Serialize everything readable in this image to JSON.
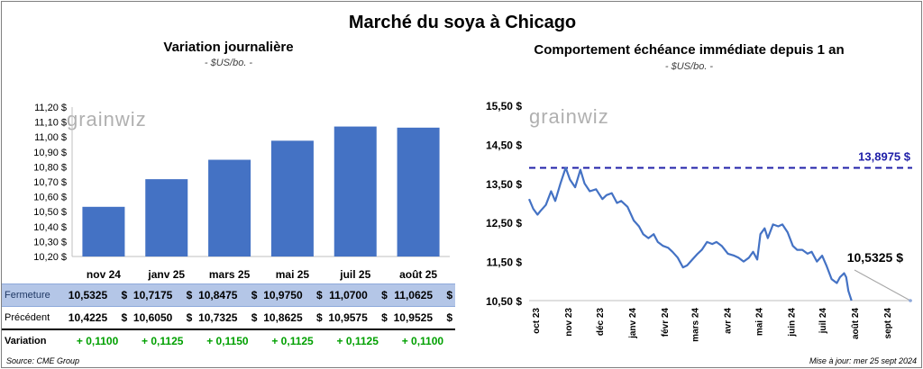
{
  "title": "Marché du soya à Chicago",
  "left": {
    "subtitle": "Variation journalière",
    "unit": "- $US/bo. -"
  },
  "right": {
    "subtitle": "Comportement échéance immédiate depuis 1 an",
    "unit": "- $US/bo. -"
  },
  "logo": "grainwiz",
  "footer": {
    "source": "Source: CME Group",
    "updated": "Mise à jour: mer 25 sept 2024"
  },
  "table": {
    "rows": [
      {
        "label": "Fermeture",
        "values": [
          "10,5325",
          "10,7175",
          "10,8475",
          "10,9750",
          "11,0700",
          "11,0625"
        ],
        "suffix": "$"
      },
      {
        "label": "Précédent",
        "values": [
          "10,4225",
          "10,6050",
          "10,7325",
          "10,8625",
          "10,9575",
          "10,9525"
        ],
        "suffix": "$"
      },
      {
        "label": "Variation",
        "values": [
          "+ 0,1100",
          "+ 0,1125",
          "+ 0,1150",
          "+ 0,1125",
          "+ 0,1125",
          "+ 0,1100"
        ],
        "suffix": ""
      }
    ]
  },
  "colors": {
    "bar": "#4472c4",
    "line": "#4472c4",
    "ref_line": "#1f1fa8",
    "variation_text": "#00a000",
    "table_highlight": "#b4c6e7"
  },
  "chart_data": [
    {
      "type": "bar",
      "categories": [
        "nov 24",
        "janv 25",
        "mars 25",
        "mai 25",
        "juil 25",
        "août 25"
      ],
      "values": [
        10.5325,
        10.7175,
        10.8475,
        10.975,
        11.07,
        11.0625
      ],
      "yticks": [
        "10,20 $",
        "10,30 $",
        "10,40 $",
        "10,50 $",
        "10,60 $",
        "10,70 $",
        "10,80 $",
        "10,90 $",
        "11,00 $",
        "11,10 $",
        "11,20 $"
      ],
      "ylim": [
        10.2,
        11.2
      ],
      "grid": false
    },
    {
      "type": "line",
      "x_start": "2023-09-25",
      "x_end": "2024-09-25",
      "xticks": [
        "oct 23",
        "nov 23",
        "déc 23",
        "janv 24",
        "févr 24",
        "mars 24",
        "avr 24",
        "mai 24",
        "juin 24",
        "juil 24",
        "août 24",
        "sept 24"
      ],
      "yticks": [
        "10,50 $",
        "11,50 $",
        "12,50 $",
        "13,50 $",
        "14,50 $",
        "15,50 $"
      ],
      "ylim": [
        10.5,
        15.5
      ],
      "reference_line": {
        "value": 13.8975,
        "label": "13,8975 $"
      },
      "last_value_label": "10,5325 $",
      "series": [
        {
          "points": [
            [
              "2023-09-25",
              13.1
            ],
            [
              "2023-09-29",
              12.85
            ],
            [
              "2023-10-03",
              12.7
            ],
            [
              "2023-10-06",
              12.8
            ],
            [
              "2023-10-11",
              12.95
            ],
            [
              "2023-10-16",
              13.3
            ],
            [
              "2023-10-20",
              13.05
            ],
            [
              "2023-10-25",
              13.5
            ],
            [
              "2023-10-30",
              13.9
            ],
            [
              "2023-11-03",
              13.6
            ],
            [
              "2023-11-08",
              13.4
            ],
            [
              "2023-11-13",
              13.85
            ],
            [
              "2023-11-17",
              13.5
            ],
            [
              "2023-11-22",
              13.3
            ],
            [
              "2023-11-28",
              13.35
            ],
            [
              "2023-12-04",
              13.1
            ],
            [
              "2023-12-08",
              13.2
            ],
            [
              "2023-12-13",
              13.25
            ],
            [
              "2023-12-18",
              13.0
            ],
            [
              "2023-12-22",
              13.05
            ],
            [
              "2023-12-28",
              12.9
            ],
            [
              "2024-01-03",
              12.55
            ],
            [
              "2024-01-08",
              12.4
            ],
            [
              "2024-01-12",
              12.2
            ],
            [
              "2024-01-17",
              12.1
            ],
            [
              "2024-01-22",
              12.2
            ],
            [
              "2024-01-26",
              12.0
            ],
            [
              "2024-01-31",
              11.9
            ],
            [
              "2024-02-05",
              11.85
            ],
            [
              "2024-02-09",
              11.75
            ],
            [
              "2024-02-14",
              11.6
            ],
            [
              "2024-02-19",
              11.35
            ],
            [
              "2024-02-23",
              11.4
            ],
            [
              "2024-02-28",
              11.55
            ],
            [
              "2024-03-04",
              11.7
            ],
            [
              "2024-03-08",
              11.8
            ],
            [
              "2024-03-13",
              12.0
            ],
            [
              "2024-03-18",
              11.95
            ],
            [
              "2024-03-22",
              12.0
            ],
            [
              "2024-03-27",
              11.9
            ],
            [
              "2024-04-02",
              11.7
            ],
            [
              "2024-04-08",
              11.65
            ],
            [
              "2024-04-12",
              11.6
            ],
            [
              "2024-04-17",
              11.5
            ],
            [
              "2024-04-22",
              11.6
            ],
            [
              "2024-04-26",
              11.75
            ],
            [
              "2024-04-30",
              11.55
            ],
            [
              "2024-05-03",
              12.2
            ],
            [
              "2024-05-07",
              12.35
            ],
            [
              "2024-05-10",
              12.1
            ],
            [
              "2024-05-15",
              12.45
            ],
            [
              "2024-05-20",
              12.4
            ],
            [
              "2024-05-24",
              12.45
            ],
            [
              "2024-05-29",
              12.25
            ],
            [
              "2024-06-03",
              11.9
            ],
            [
              "2024-06-07",
              11.8
            ],
            [
              "2024-06-12",
              11.8
            ],
            [
              "2024-06-17",
              11.7
            ],
            [
              "2024-06-21",
              11.75
            ],
            [
              "2024-06-26",
              11.5
            ],
            [
              "2024-07-01",
              11.65
            ],
            [
              "2024-07-05",
              11.4
            ],
            [
              "2024-07-10",
              11.05
            ],
            [
              "2024-07-15",
              10.95
            ],
            [
              "2024-07-18",
              11.1
            ],
            [
              "2024-07-22",
              11.2
            ],
            [
              "2024-07-24",
              11.1
            ],
            [
              "2024-07-26",
              10.75
            ],
            [
              "2024-07-29",
              10.5
            ]
          ]
        }
      ]
    }
  ]
}
